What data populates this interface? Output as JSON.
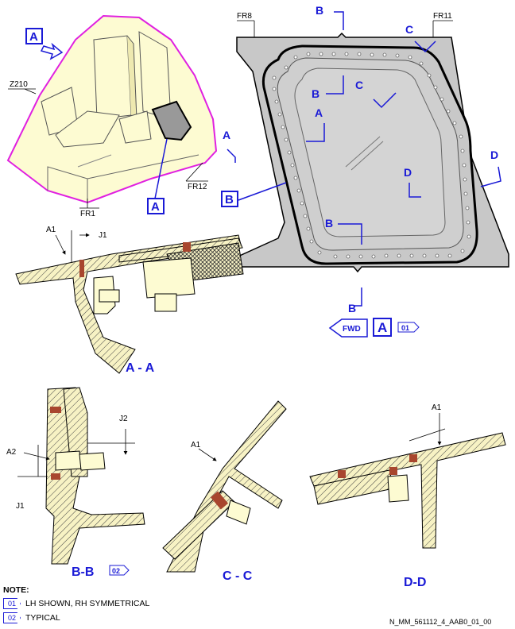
{
  "view_top": {
    "callout_a": "A",
    "label_z210": "Z210",
    "label_fr1": "FR1",
    "label_fr12": "FR12",
    "callout_a_lower": "A"
  },
  "view_a": {
    "fr8": "FR8",
    "fr11": "FR11",
    "cut_b": "B",
    "cut_c": "C",
    "cut_a": "A",
    "cut_d": "D",
    "ref_b": "B",
    "fwd": "FWD",
    "view_id": "A",
    "note_ref": "01"
  },
  "section_aa": {
    "title": "A - A",
    "dim1": "A1",
    "dim2": "J1"
  },
  "section_bb": {
    "title": "B-B",
    "note_ref": "02",
    "dim_a2": "A2",
    "dim_j1": "J1",
    "dim_j2": "J2"
  },
  "section_cc": {
    "title": "C - C",
    "dim1": "A1"
  },
  "section_dd": {
    "title": "D-D",
    "dim1": "A1"
  },
  "notes": {
    "heading": "NOTE:",
    "items": [
      {
        "ref": "01",
        "text": "LH SHOWN, RH SYMMETRICAL"
      },
      {
        "ref": "02",
        "text": "TYPICAL"
      }
    ]
  },
  "drawing_id": "N_MM_561112_4_AAB0_01_00"
}
